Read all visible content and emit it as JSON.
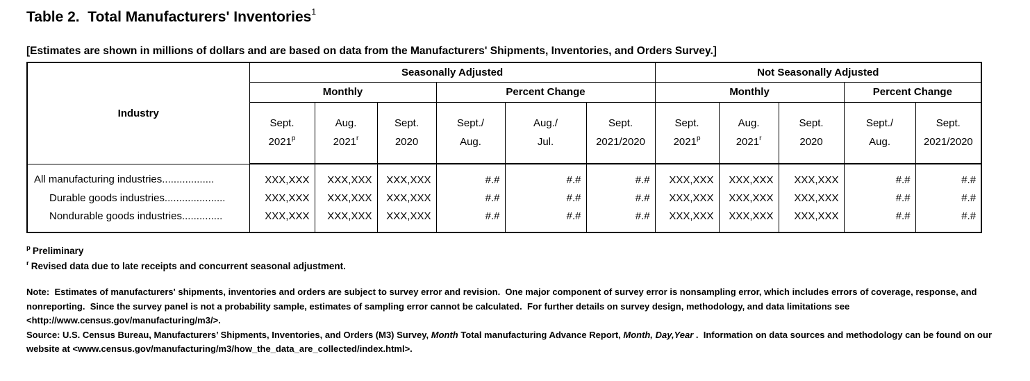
{
  "title": {
    "text": "Table 2.  Total Manufacturers' Inventories",
    "superscript": "1"
  },
  "subtitle": "[Estimates are shown in millions of dollars and are based on data from the Manufacturers' Shipments, Inventories, and Orders Survey.]",
  "table": {
    "industry_header": "Industry",
    "groups": [
      {
        "label": "Seasonally Adjusted",
        "subgroups": [
          {
            "label": "Monthly"
          },
          {
            "label": "Percent Change"
          }
        ]
      },
      {
        "label": "Not Seasonally Adjusted",
        "subgroups": [
          {
            "label": "Monthly"
          },
          {
            "label": "Percent Change"
          }
        ]
      }
    ],
    "columns": [
      {
        "line1": "Sept.",
        "line2": "2021",
        "sup": "p"
      },
      {
        "line1": "Aug.",
        "line2": "2021",
        "sup": "r"
      },
      {
        "line1": "Sept.",
        "line2": "2020",
        "sup": ""
      },
      {
        "line1": "Sept./",
        "line2": "Aug.",
        "sup": ""
      },
      {
        "line1": "Aug./",
        "line2": "Jul.",
        "sup": ""
      },
      {
        "line1": "Sept.",
        "line2": "2021/2020",
        "sup": ""
      },
      {
        "line1": "Sept.",
        "line2": "2021",
        "sup": "p"
      },
      {
        "line1": "Aug.",
        "line2": "2021",
        "sup": "r"
      },
      {
        "line1": "Sept.",
        "line2": "2020",
        "sup": ""
      },
      {
        "line1": "Sept./",
        "line2": "Aug.",
        "sup": ""
      },
      {
        "line1": "Sept.",
        "line2": "2021/2020",
        "sup": ""
      }
    ],
    "rows": [
      {
        "label": "All manufacturing industries..................",
        "values": [
          "XXX,XXX",
          "XXX,XXX",
          "XXX,XXX",
          "#.#",
          "#.#",
          "#.#",
          "XXX,XXX",
          "XXX,XXX",
          "XXX,XXX",
          "#.#",
          "#.#"
        ]
      },
      {
        "label": "Durable goods industries.....................",
        "values": [
          "XXX,XXX",
          "XXX,XXX",
          "XXX,XXX",
          "#.#",
          "#.#",
          "#.#",
          "XXX,XXX",
          "XXX,XXX",
          "XXX,XXX",
          "#.#",
          "#.#"
        ]
      },
      {
        "label": "Nondurable goods industries..............",
        "values": [
          "XXX,XXX",
          "XXX,XXX",
          "XXX,XXX",
          "#.#",
          "#.#",
          "#.#",
          "XXX,XXX",
          "XXX,XXX",
          "XXX,XXX",
          "#.#",
          "#.#"
        ]
      }
    ]
  },
  "footnotes": [
    {
      "sup": "p",
      "text": "Preliminary"
    },
    {
      "sup": "r",
      "text": "Revised data due to late receipts and concurrent seasonal adjustment."
    }
  ],
  "note_lines": [
    "Note:  Estimates of manufacturers' shipments, inventories and orders are subject to survey error and revision.  One major component of survey error is nonsampling error, which includes errors of coverage, response, and",
    "nonreporting.  Since the survey panel is not a probability sample, estimates of sampling error cannot be calculated.  For further details on survey design, methodology, and data limitations see",
    "<http://www.census.gov/manufacturing/m3/>."
  ],
  "source": {
    "line1_segments": [
      {
        "text": "Source: U.S. Census Bureau, Manufacturers’ Shipments, Inventories, and Orders (M3) Survey, ",
        "italic": false
      },
      {
        "text": "Month",
        "italic": true
      },
      {
        "text": " Total manufacturing Advance Report, ",
        "italic": false
      },
      {
        "text": "Month, Day,Year",
        "italic": true
      },
      {
        "text": " .  Information on data sources and methodology can be found on our",
        "italic": false
      }
    ],
    "line2": "website at <www.census.gov/manufacturing/m3/how_the_data_are_collected/index.html>."
  },
  "colors": {
    "text": "#000000",
    "background": "#ffffff",
    "border": "#000000"
  }
}
